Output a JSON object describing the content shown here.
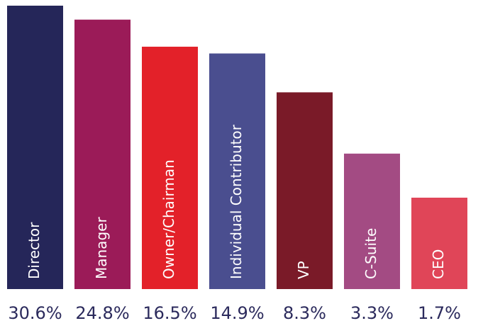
{
  "chart_data": {
    "type": "bar",
    "log_scale": true,
    "categories": [
      "Director",
      "Manager",
      "Owner/Chairman",
      "Individual Contributor",
      "VP",
      "C-Suite",
      "CEO"
    ],
    "values": [
      30.6,
      24.8,
      16.5,
      14.9,
      8.3,
      3.3,
      1.7
    ],
    "value_labels": [
      "30.6%",
      "24.8%",
      "16.5%",
      "14.9%",
      "8.3%",
      "3.3%",
      "1.7%"
    ],
    "colors": [
      "#252659",
      "#9b1b58",
      "#e32129",
      "#4a4e8f",
      "#7a1a28",
      "#a34b83",
      "#e04558"
    ]
  }
}
